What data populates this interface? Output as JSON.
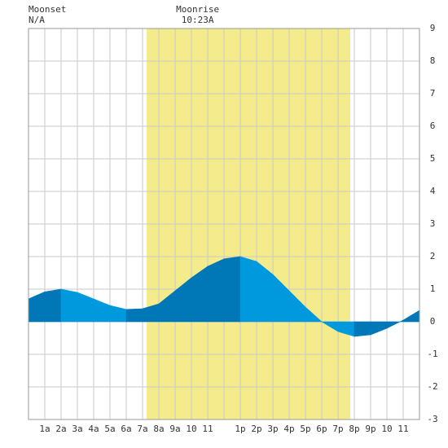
{
  "chart_data": {
    "type": "tide",
    "annotations": [
      {
        "title": "Moonset",
        "text": "N/A",
        "x": 0
      },
      {
        "title": "Moonrise",
        "text": "10:23A",
        "x": 10.38
      }
    ],
    "daylight": [
      7.25,
      19.75
    ],
    "x": [
      0,
      1,
      2,
      3,
      4,
      5,
      6,
      7,
      8,
      9,
      10,
      11,
      12,
      13,
      14,
      15,
      16,
      17,
      18,
      19,
      20,
      21,
      22,
      23,
      24
    ],
    "values": [
      0.7,
      0.92,
      1.0,
      0.9,
      0.7,
      0.5,
      0.38,
      0.4,
      0.55,
      0.95,
      1.35,
      1.7,
      1.93,
      2.0,
      1.85,
      1.45,
      0.95,
      0.45,
      0.0,
      -0.3,
      -0.45,
      -0.4,
      -0.2,
      0.05,
      0.35
    ],
    "rising_color": "#0077b6",
    "falling_color": "#0099dd",
    "daylight_color": "#f3eb8c",
    "xlim": [
      0,
      24
    ],
    "xticks": [
      {
        "value": 1,
        "label": "1a"
      },
      {
        "value": 2,
        "label": "2a"
      },
      {
        "value": 3,
        "label": "3a"
      },
      {
        "value": 4,
        "label": "4a"
      },
      {
        "value": 5,
        "label": "5a"
      },
      {
        "value": 6,
        "label": "6a"
      },
      {
        "value": 7,
        "label": "7a"
      },
      {
        "value": 8,
        "label": "8a"
      },
      {
        "value": 9,
        "label": "9a"
      },
      10,
      11,
      {
        "value": 13,
        "label": "1p"
      },
      {
        "value": 14,
        "label": "2p"
      },
      {
        "value": 15,
        "label": "3p"
      },
      {
        "value": 16,
        "label": "4p"
      },
      {
        "value": 17,
        "label": "5p"
      },
      {
        "value": 18,
        "label": "6p"
      },
      {
        "value": 19,
        "label": "7p"
      },
      {
        "value": 20,
        "label": "8p"
      },
      {
        "value": 21,
        "label": "9p"
      },
      {
        "value": 22,
        "label": "10"
      },
      {
        "value": 23,
        "label": "11"
      }
    ],
    "ylim": [
      -3,
      9
    ],
    "yticks": [
      -3,
      -2,
      -1,
      0,
      1,
      2,
      3,
      4,
      5,
      6,
      7,
      8,
      9
    ],
    "grid": true
  }
}
